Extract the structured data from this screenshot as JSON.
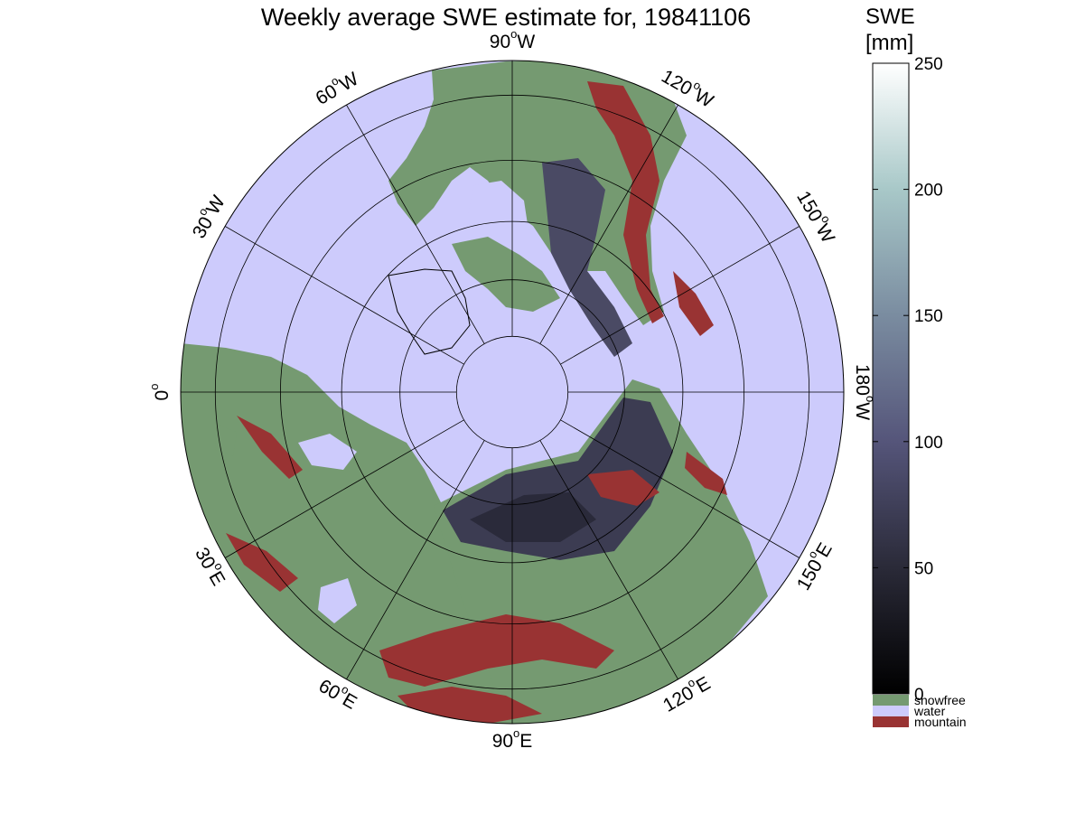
{
  "title": "Weekly average SWE estimate for, 19841106",
  "colorbar": {
    "title_line1": "SWE",
    "title_line2": "[mm]",
    "min": 0,
    "max": 250,
    "ticks": [
      "0",
      "50",
      "100",
      "150",
      "200",
      "250"
    ],
    "categories": [
      {
        "label": "snowfree",
        "color": "#759a71"
      },
      {
        "label": "water",
        "color": "#cdcbfc"
      },
      {
        "label": "mountain",
        "color": "#993333"
      }
    ]
  },
  "map": {
    "projection": "north-polar-stereographic",
    "latitude_circles": [
      40,
      50,
      60,
      70,
      80
    ],
    "longitude_labels": [
      {
        "deg": "90",
        "dir": "W"
      },
      {
        "deg": "120",
        "dir": "W"
      },
      {
        "deg": "150",
        "dir": "W"
      },
      {
        "deg": "180",
        "dir": "W"
      },
      {
        "deg": "150",
        "dir": "E"
      },
      {
        "deg": "120",
        "dir": "E"
      },
      {
        "deg": "90",
        "dir": "E"
      },
      {
        "deg": "60",
        "dir": "E"
      },
      {
        "deg": "30",
        "dir": "E"
      },
      {
        "deg": "0",
        "dir": ""
      },
      {
        "deg": "30",
        "dir": "W"
      },
      {
        "deg": "60",
        "dir": "W"
      }
    ],
    "colors": {
      "water": "#cdcbfc",
      "snowfree": "#759a71",
      "mountain": "#993333",
      "snow_low": "#1e1e2a",
      "snow_mid": "#3c3c52",
      "snow_high": "#5a5a78"
    }
  }
}
